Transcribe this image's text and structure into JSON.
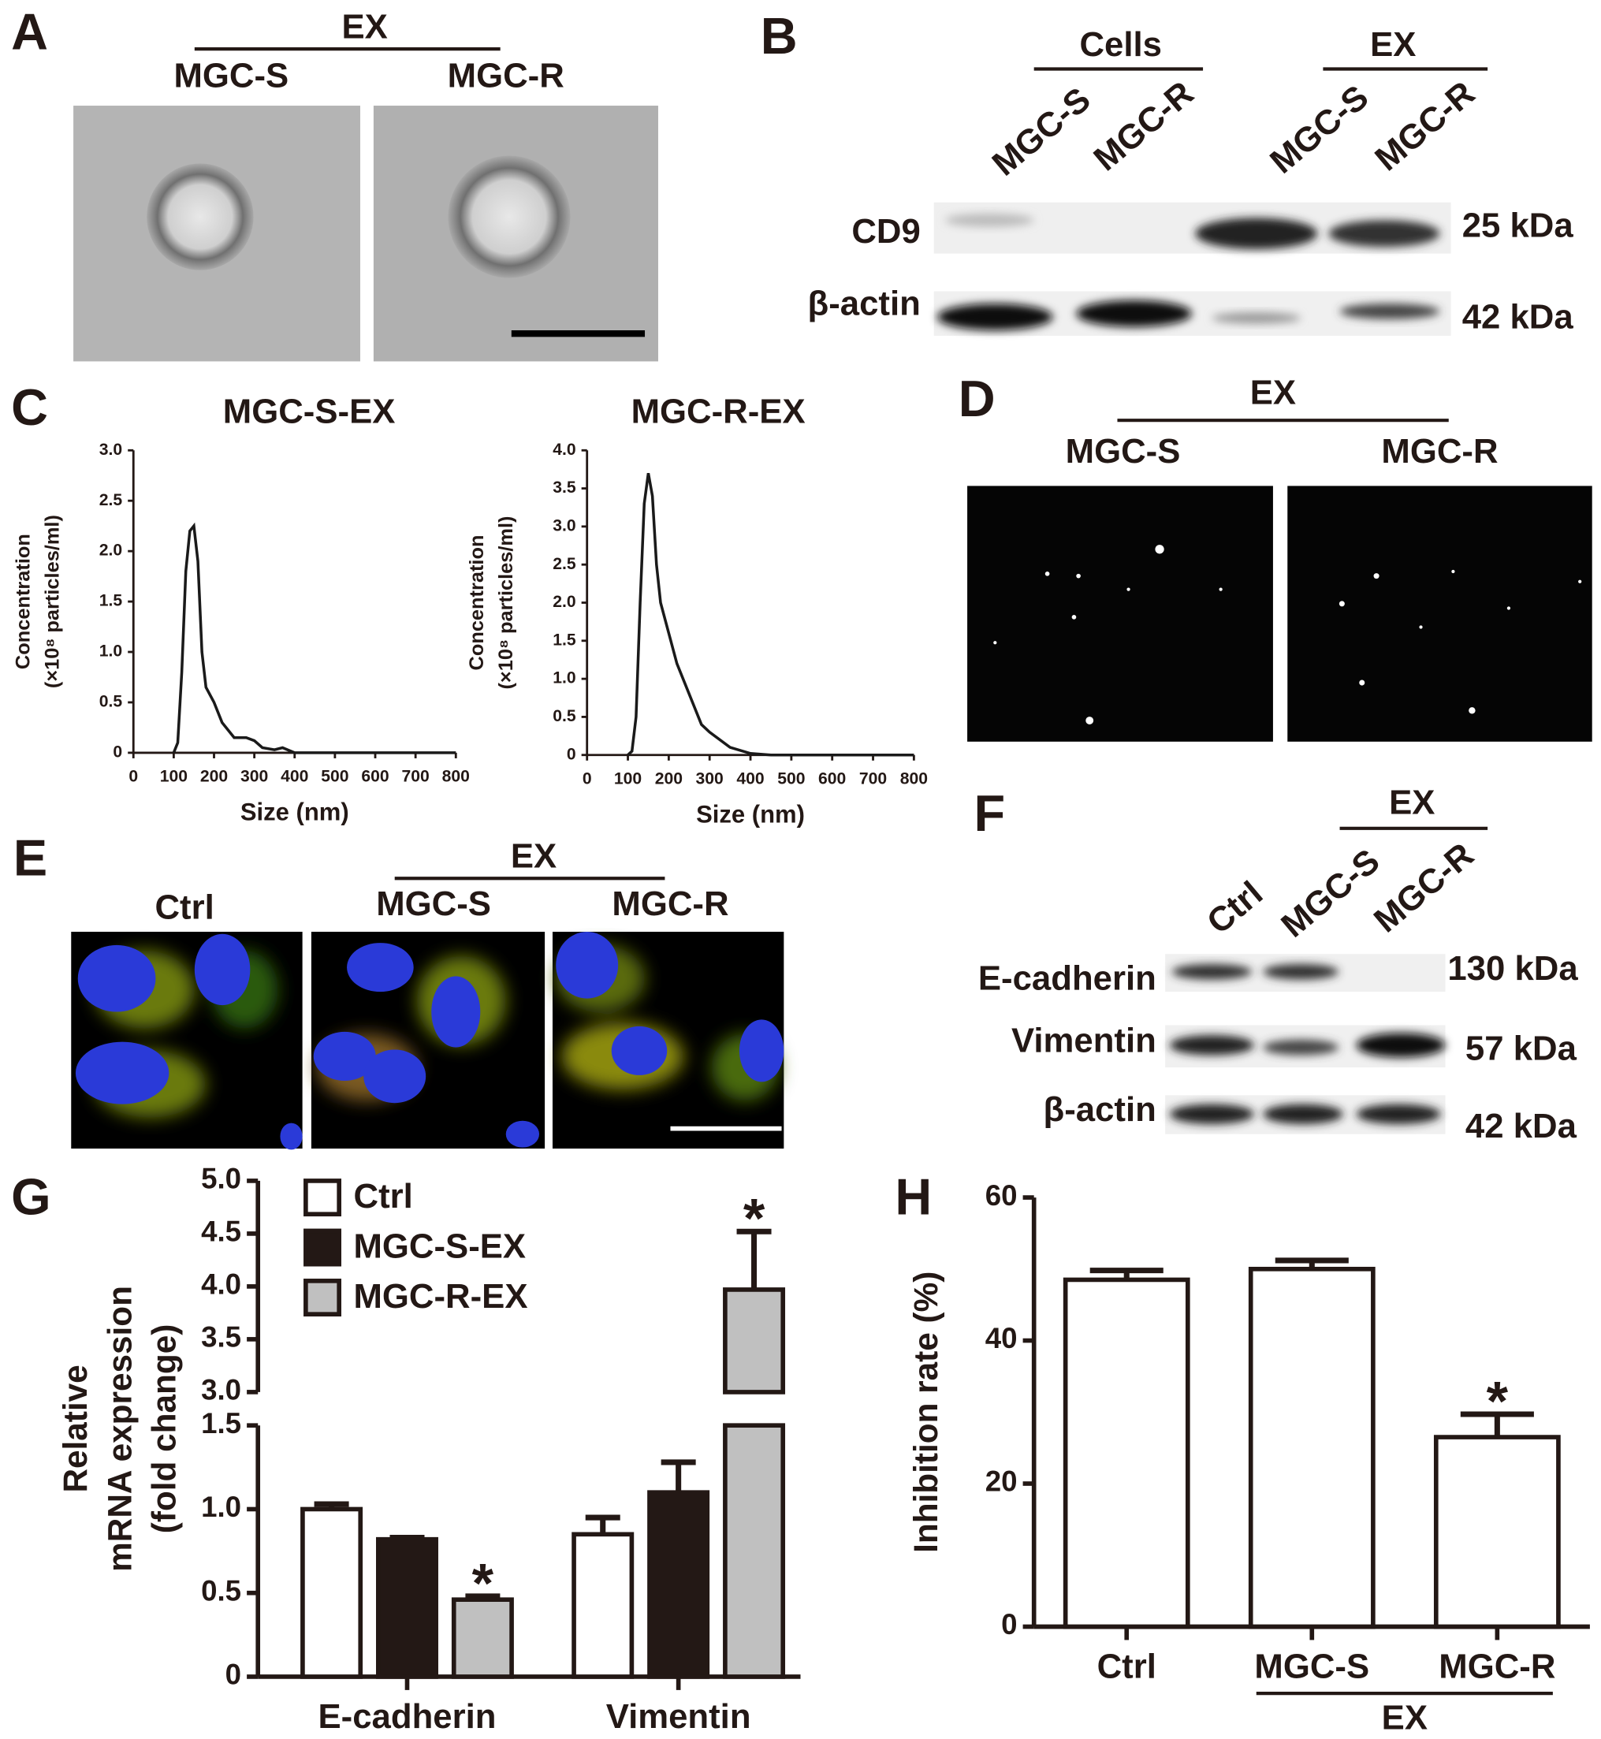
{
  "panels": {
    "A": {
      "label": "A",
      "group": "EX",
      "lanes": [
        "MGC-S",
        "MGC-R"
      ]
    },
    "B": {
      "label": "B",
      "groups": [
        "Cells",
        "EX"
      ],
      "lanes": [
        "MGC-S",
        "MGC-R",
        "MGC-S",
        "MGC-R"
      ],
      "rows": [
        "CD9",
        "β-actin"
      ],
      "sizes": [
        "25 kDa",
        "42 kDa"
      ]
    },
    "D": {
      "label": "D",
      "group": "EX",
      "lanes": [
        "MGC-S",
        "MGC-R"
      ]
    },
    "E": {
      "label": "E",
      "control": "Ctrl",
      "group": "EX",
      "lanes": [
        "MGC-S",
        "MGC-R"
      ]
    },
    "F": {
      "label": "F",
      "group": "EX",
      "lanes": [
        "Ctrl",
        "MGC-S",
        "MGC-R"
      ],
      "rows": [
        "E-cadherin",
        "Vimentin",
        "β-actin"
      ],
      "sizes": [
        "130 kDa",
        "57 kDa",
        "42 kDa"
      ]
    }
  },
  "chart_data": [
    {
      "type": "line",
      "panel": "C",
      "title": "MGC-S-EX",
      "ylabel": [
        "Concentration",
        "(×10⁸ particles/ml)"
      ],
      "xlabel": "Size (nm)",
      "x": [
        100,
        110,
        120,
        130,
        140,
        150,
        160,
        170,
        180,
        200,
        220,
        250,
        280,
        300,
        320,
        350,
        370,
        400,
        450,
        500,
        600,
        700,
        800
      ],
      "values": [
        0,
        0.1,
        0.8,
        1.8,
        2.2,
        2.25,
        1.9,
        1.0,
        0.65,
        0.5,
        0.3,
        0.15,
        0.15,
        0.12,
        0.05,
        0.03,
        0.05,
        0,
        0,
        0,
        0,
        0,
        0
      ],
      "color": "#1a1a1a",
      "xlim": [
        0,
        800
      ],
      "xticks": [
        0,
        100,
        200,
        300,
        400,
        500,
        600,
        700,
        800
      ],
      "ylim": [
        0,
        3
      ],
      "yticks": [
        0,
        0.5,
        {
          "value": 1,
          "label": "1.0"
        },
        1.5,
        {
          "value": 2,
          "label": "2.0"
        },
        2.5,
        {
          "value": 3,
          "label": "3.0"
        }
      ]
    },
    {
      "type": "line",
      "title": "MGC-R-EX",
      "ylabel": [
        "Concentration",
        "(×10⁸ particles/ml)"
      ],
      "xlabel": "Size (nm)",
      "x": [
        100,
        110,
        120,
        130,
        140,
        150,
        160,
        170,
        180,
        200,
        220,
        250,
        280,
        300,
        350,
        400,
        450,
        500,
        600,
        700,
        800
      ],
      "values": [
        0,
        0.05,
        0.5,
        2.0,
        3.3,
        3.7,
        3.4,
        2.5,
        2.0,
        1.6,
        1.2,
        0.8,
        0.4,
        0.3,
        0.1,
        0.02,
        0,
        0,
        0,
        0,
        0
      ],
      "color": "#1a1a1a",
      "xlim": [
        0,
        800
      ],
      "xticks": [
        0,
        100,
        200,
        300,
        400,
        500,
        600,
        700,
        800
      ],
      "ylim": [
        0,
        4
      ],
      "yticks": [
        0,
        0.5,
        {
          "value": 1,
          "label": "1.0"
        },
        1.5,
        {
          "value": 2,
          "label": "2.0"
        },
        2.5,
        {
          "value": 3,
          "label": "3.0"
        },
        3.5,
        {
          "value": 4,
          "label": "4.0"
        }
      ]
    },
    {
      "type": "bar",
      "panel": "G",
      "ylabel": [
        "Relative",
        "mRNA expression",
        "(fold change)"
      ],
      "categories": [
        "E-cadherin",
        "Vimentin"
      ],
      "series": [
        {
          "name": "Ctrl",
          "color": "#ffffff",
          "values": [
            1.0,
            0.85
          ],
          "errors": [
            0.03,
            0.1
          ]
        },
        {
          "name": "MGC-S-EX",
          "color": "#231815",
          "values": [
            0.82,
            1.1
          ],
          "errors": [
            0.01,
            0.18
          ]
        },
        {
          "name": "MGC-R-EX",
          "color": "#c0c0c0",
          "values": [
            0.46,
            3.97
          ],
          "errors": [
            0.02,
            0.55
          ]
        }
      ],
      "edgecolor": "#231815",
      "ylim": [
        0,
        5
      ],
      "axis_break": [
        1.5,
        3
      ],
      "yticks": [
        0,
        0.5,
        {
          "value": 1,
          "label": "1.0"
        },
        1.5,
        {
          "value": 3,
          "label": "3.0"
        },
        3.5,
        {
          "value": 4,
          "label": "4.0"
        },
        4.5,
        {
          "value": 5,
          "label": "5.0"
        }
      ],
      "annotations": [
        {
          "series": 2,
          "category": 0,
          "text": "*"
        },
        {
          "series": 2,
          "category": 1,
          "text": "*"
        }
      ],
      "legend": "upper left"
    },
    {
      "type": "bar",
      "panel": "H",
      "ylabel": [
        "Inhibition rate (%)"
      ],
      "categories": [
        "Ctrl",
        "MGC-S",
        "MGC-R"
      ],
      "values": [
        48.5,
        50,
        26.5
      ],
      "errors": [
        1.3,
        1.2,
        3.2
      ],
      "color": "#ffffff",
      "edgecolor": "#231815",
      "ylim": [
        0,
        60
      ],
      "yticks": [
        0,
        20,
        40,
        60
      ],
      "annotations": [
        {
          "category": 2,
          "text": "*"
        }
      ],
      "group": {
        "label": "EX",
        "from": 1,
        "to": 2
      }
    }
  ]
}
